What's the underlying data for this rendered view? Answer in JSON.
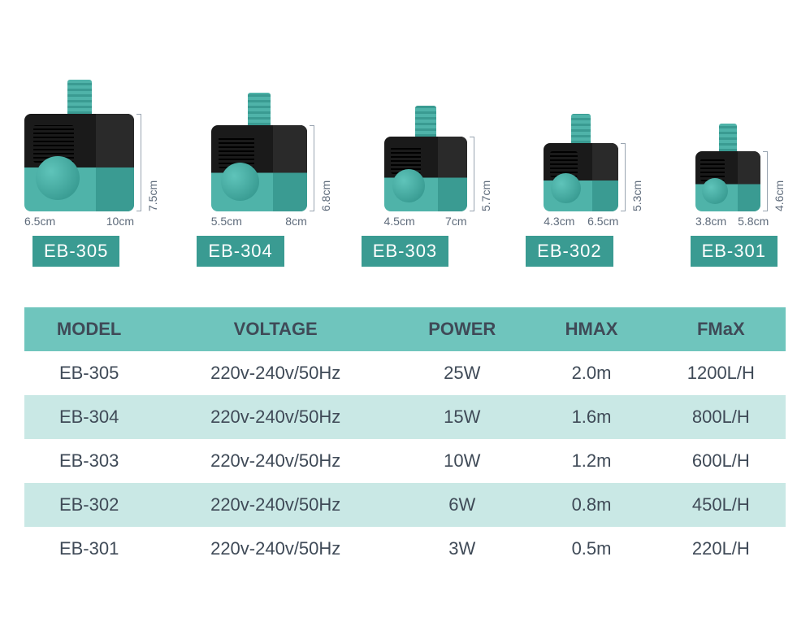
{
  "colors": {
    "teal": "#4fb3a9",
    "teal_dark": "#3a9b92",
    "label_bg": "#3a9b92",
    "label_text": "#ffffff",
    "header_bg": "#6fc5bd",
    "row_alt_bg": "#c9e8e5",
    "row_bg": "#ffffff",
    "text_primary": "#3f4a57",
    "text_dim": "#5d6a7a"
  },
  "products": [
    {
      "model": "EB-305",
      "width_label": "6.5cm",
      "depth_label": "10cm",
      "height_label": "7.5cm",
      "body_w": 135,
      "body_h": 120,
      "nozzle_w": 30,
      "nozzle_h": 42
    },
    {
      "model": "EB-304",
      "width_label": "5.5cm",
      "depth_label": "8cm",
      "height_label": "6.8cm",
      "body_w": 118,
      "body_h": 106,
      "nozzle_w": 28,
      "nozzle_h": 40
    },
    {
      "model": "EB-303",
      "width_label": "4.5cm",
      "depth_label": "7cm",
      "height_label": "5.7cm",
      "body_w": 102,
      "body_h": 92,
      "nozzle_w": 26,
      "nozzle_h": 38
    },
    {
      "model": "EB-302",
      "width_label": "4.3cm",
      "depth_label": "6.5cm",
      "height_label": "5.3cm",
      "body_w": 92,
      "body_h": 84,
      "nozzle_w": 24,
      "nozzle_h": 36
    },
    {
      "model": "EB-301",
      "width_label": "3.8cm",
      "depth_label": "5.8cm",
      "height_label": "4.6cm",
      "body_w": 80,
      "body_h": 74,
      "nozzle_w": 22,
      "nozzle_h": 34
    }
  ],
  "table": {
    "columns": [
      "MODEL",
      "VOLTAGE",
      "POWER",
      "HMAX",
      "FMaX"
    ],
    "col_widths": [
      "17%",
      "32%",
      "17%",
      "17%",
      "17%"
    ],
    "rows": [
      [
        "EB-305",
        "220v-240v/50Hz",
        "25W",
        "2.0m",
        "1200L/H"
      ],
      [
        "EB-304",
        "220v-240v/50Hz",
        "15W",
        "1.6m",
        "800L/H"
      ],
      [
        "EB-303",
        "220v-240v/50Hz",
        "10W",
        "1.2m",
        "600L/H"
      ],
      [
        "EB-302",
        "220v-240v/50Hz",
        "6W",
        "0.8m",
        "450L/H"
      ],
      [
        "EB-301",
        "220v-240v/50Hz",
        "3W",
        "0.5m",
        "220L/H"
      ]
    ]
  }
}
